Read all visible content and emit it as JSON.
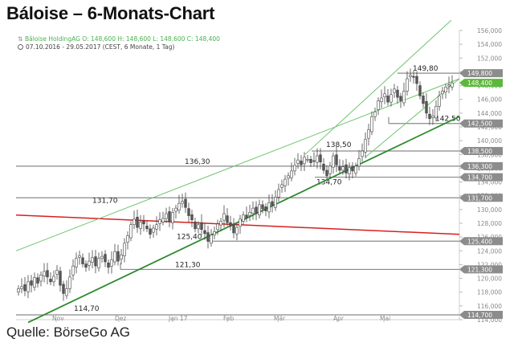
{
  "title": "Báloise – 6-Monats-Chart",
  "legend": "Bâloise HoldingAG  O: 148,600  H: 148,600  L: 148,600  C: 148,400",
  "period": "07.10.2016 - 29.05.2017   (CEST, 6 Monate, 1 Tag)",
  "source": "Quelle: BörseGo AG",
  "colors": {
    "up": "#555555",
    "down": "#555555",
    "support": "#2e8b2e",
    "channel": "#6fc36f",
    "resistance": "#d62020",
    "level": "#8a8a8a",
    "current_badge": "#5cb83a"
  },
  "chart_data": {
    "type": "candlestick",
    "y_ticks": [
      "114,000",
      "116,000",
      "118,000",
      "120,000",
      "122,000",
      "124,000",
      "126,000",
      "128,000",
      "130,000",
      "132,000",
      "134,000",
      "136,000",
      "138,000",
      "140,000",
      "142,000",
      "144,000",
      "146,000",
      "148,000",
      "150,000",
      "152,000",
      "154,000",
      "156,000"
    ],
    "ylim": [
      114,
      156
    ],
    "x_ticks": [
      "Nov",
      "Dez",
      "Jan 17",
      "Feb",
      "Mär",
      "Apr",
      "Mai"
    ],
    "levels": [
      {
        "value": 149.8,
        "label": "149,80",
        "badge": "149,800"
      },
      {
        "value": 142.5,
        "label": "142,50",
        "badge": "142,500"
      },
      {
        "value": 138.5,
        "label": "138,50",
        "badge": "138,500"
      },
      {
        "value": 136.3,
        "label": "136,30",
        "badge": "136,300"
      },
      {
        "value": 134.7,
        "label": "134,70",
        "badge": "134,700"
      },
      {
        "value": 131.7,
        "label": "131,70",
        "badge": "131,700"
      },
      {
        "value": 125.4,
        "label": "125,40",
        "badge": "125,400"
      },
      {
        "value": 121.3,
        "label": "121,30",
        "badge": "121,300"
      },
      {
        "value": 114.7,
        "label": "114,70",
        "badge": "114,700"
      }
    ],
    "current": {
      "value": 148.4,
      "badge": "148,400"
    },
    "closes": [
      118.5,
      118.8,
      118.2,
      119.5,
      119.0,
      120.1,
      119.3,
      120.5,
      121.0,
      120.2,
      119.5,
      120.3,
      121.2,
      119.0,
      117.8,
      118.5,
      120.2,
      121.8,
      122.9,
      123.3,
      122.1,
      121.6,
      122.5,
      123.0,
      121.8,
      122.9,
      123.2,
      122.4,
      121.6,
      122.7,
      123.9,
      122.5,
      123.4,
      125.1,
      126.2,
      127.8,
      128.6,
      127.4,
      128.2,
      127.9,
      127.2,
      126.4,
      127.3,
      127.8,
      128.5,
      128.7,
      129.4,
      128.2,
      129.6,
      130.2,
      130.9,
      131.2,
      130.3,
      129.1,
      128.5,
      127.2,
      127.8,
      127.1,
      126.5,
      125.4,
      126.3,
      126.8,
      127.9,
      128.3,
      129.4,
      128.1,
      127.6,
      126.6,
      127.4,
      128.6,
      129.2,
      128.8,
      129.6,
      130.2,
      129.5,
      130.7,
      130.1,
      129.8,
      131.0,
      130.6,
      131.8,
      132.9,
      133.6,
      134.4,
      134.9,
      135.6,
      136.4,
      137.2,
      136.5,
      137.6,
      137.3,
      136.8,
      137.0,
      137.8,
      136.9,
      135.7,
      134.9,
      136.3,
      137.8,
      136.5,
      135.7,
      136.2,
      135.3,
      136.1,
      135.6,
      136.3,
      137.4,
      138.5,
      140.2,
      141.6,
      143.5,
      144.2,
      145.8,
      146.2,
      146.8,
      145.6,
      146.7,
      147.5,
      146.3,
      145.8,
      147.2,
      149.0,
      149.5,
      149.2,
      148.3,
      146.5,
      145.4,
      144.0,
      143.2,
      143.6,
      145.0,
      146.5,
      147.2,
      147.8,
      148.1,
      148.4
    ]
  }
}
